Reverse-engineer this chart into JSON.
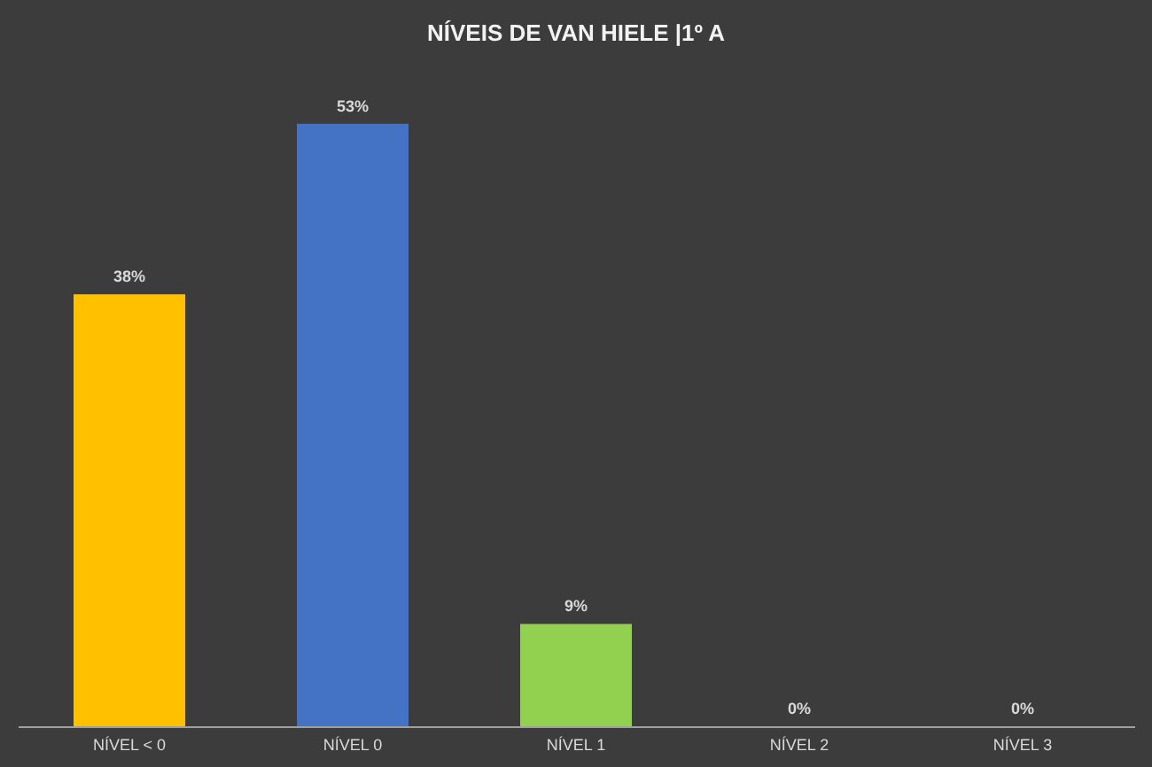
{
  "chart_data": {
    "type": "bar",
    "title": "NÍVEIS DE VAN HIELE |1º A",
    "categories": [
      "NÍVEL < 0",
      "NÍVEL 0",
      "NÍVEL 1",
      "NÍVEL 2",
      "NÍVEL 3"
    ],
    "values": [
      38,
      53,
      9,
      0,
      0
    ],
    "value_labels": [
      "38%",
      "53%",
      "9%",
      "0%",
      "0%"
    ],
    "colors": [
      "#ffc000",
      "#4472c4",
      "#92d050",
      "#a5a5a5",
      "#5b9bd5"
    ]
  }
}
